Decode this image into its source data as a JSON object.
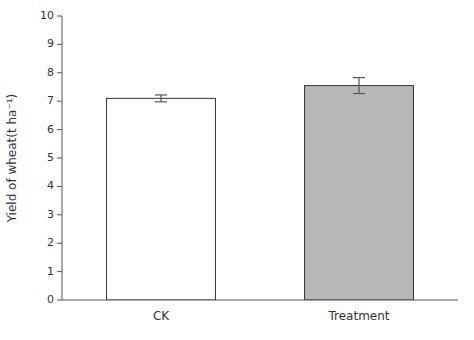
{
  "chart_data": {
    "type": "bar",
    "categories": [
      "CK",
      "Treatment"
    ],
    "values": [
      7.1,
      7.55
    ],
    "errors": [
      0.12,
      0.28
    ],
    "colors": [
      "#ffffff",
      "#b8b8b8"
    ],
    "ylim": [
      0,
      10
    ],
    "yticks": [
      0,
      1,
      2,
      3,
      4,
      5,
      6,
      7,
      8,
      9,
      10
    ],
    "ylabel": "Yield of wheat(t ha⁻¹)",
    "grid": false
  }
}
